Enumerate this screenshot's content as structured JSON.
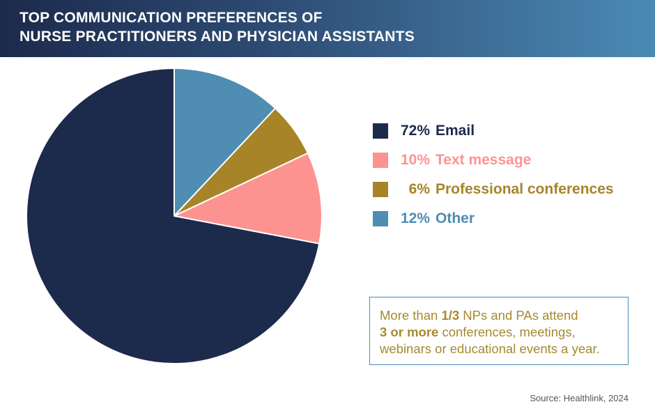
{
  "header": {
    "title_line1": "TOP COMMUNICATION PREFERENCES OF",
    "title_line2": "NURSE PRACTITIONERS AND PHYSICIAN ASSISTANTS"
  },
  "chart_data": {
    "type": "pie",
    "title": "TOP COMMUNICATION PREFERENCES OF NURSE PRACTITIONERS AND PHYSICIAN ASSISTANTS",
    "legend_placement": "right",
    "slices": [
      {
        "label": "Email",
        "value": 72,
        "display": "72%",
        "color": "#1c2a4c"
      },
      {
        "label": "Text message",
        "value": 10,
        "display": "10%",
        "color": "#fd9391"
      },
      {
        "label": "Professional conferences",
        "value": 6,
        "display": "6%",
        "color": "#a68427"
      },
      {
        "label": "Other",
        "value": 12,
        "display": "12%",
        "color": "#4f8db3"
      }
    ]
  },
  "note": {
    "part1": "More than ",
    "bold1": "1/3",
    "part2": " NPs and PAs attend",
    "bold2": "3 or more",
    "part3": " conferences, meetings,",
    "line3": "webinars or educational events a year."
  },
  "source": "Source: Healthlink, 2024"
}
